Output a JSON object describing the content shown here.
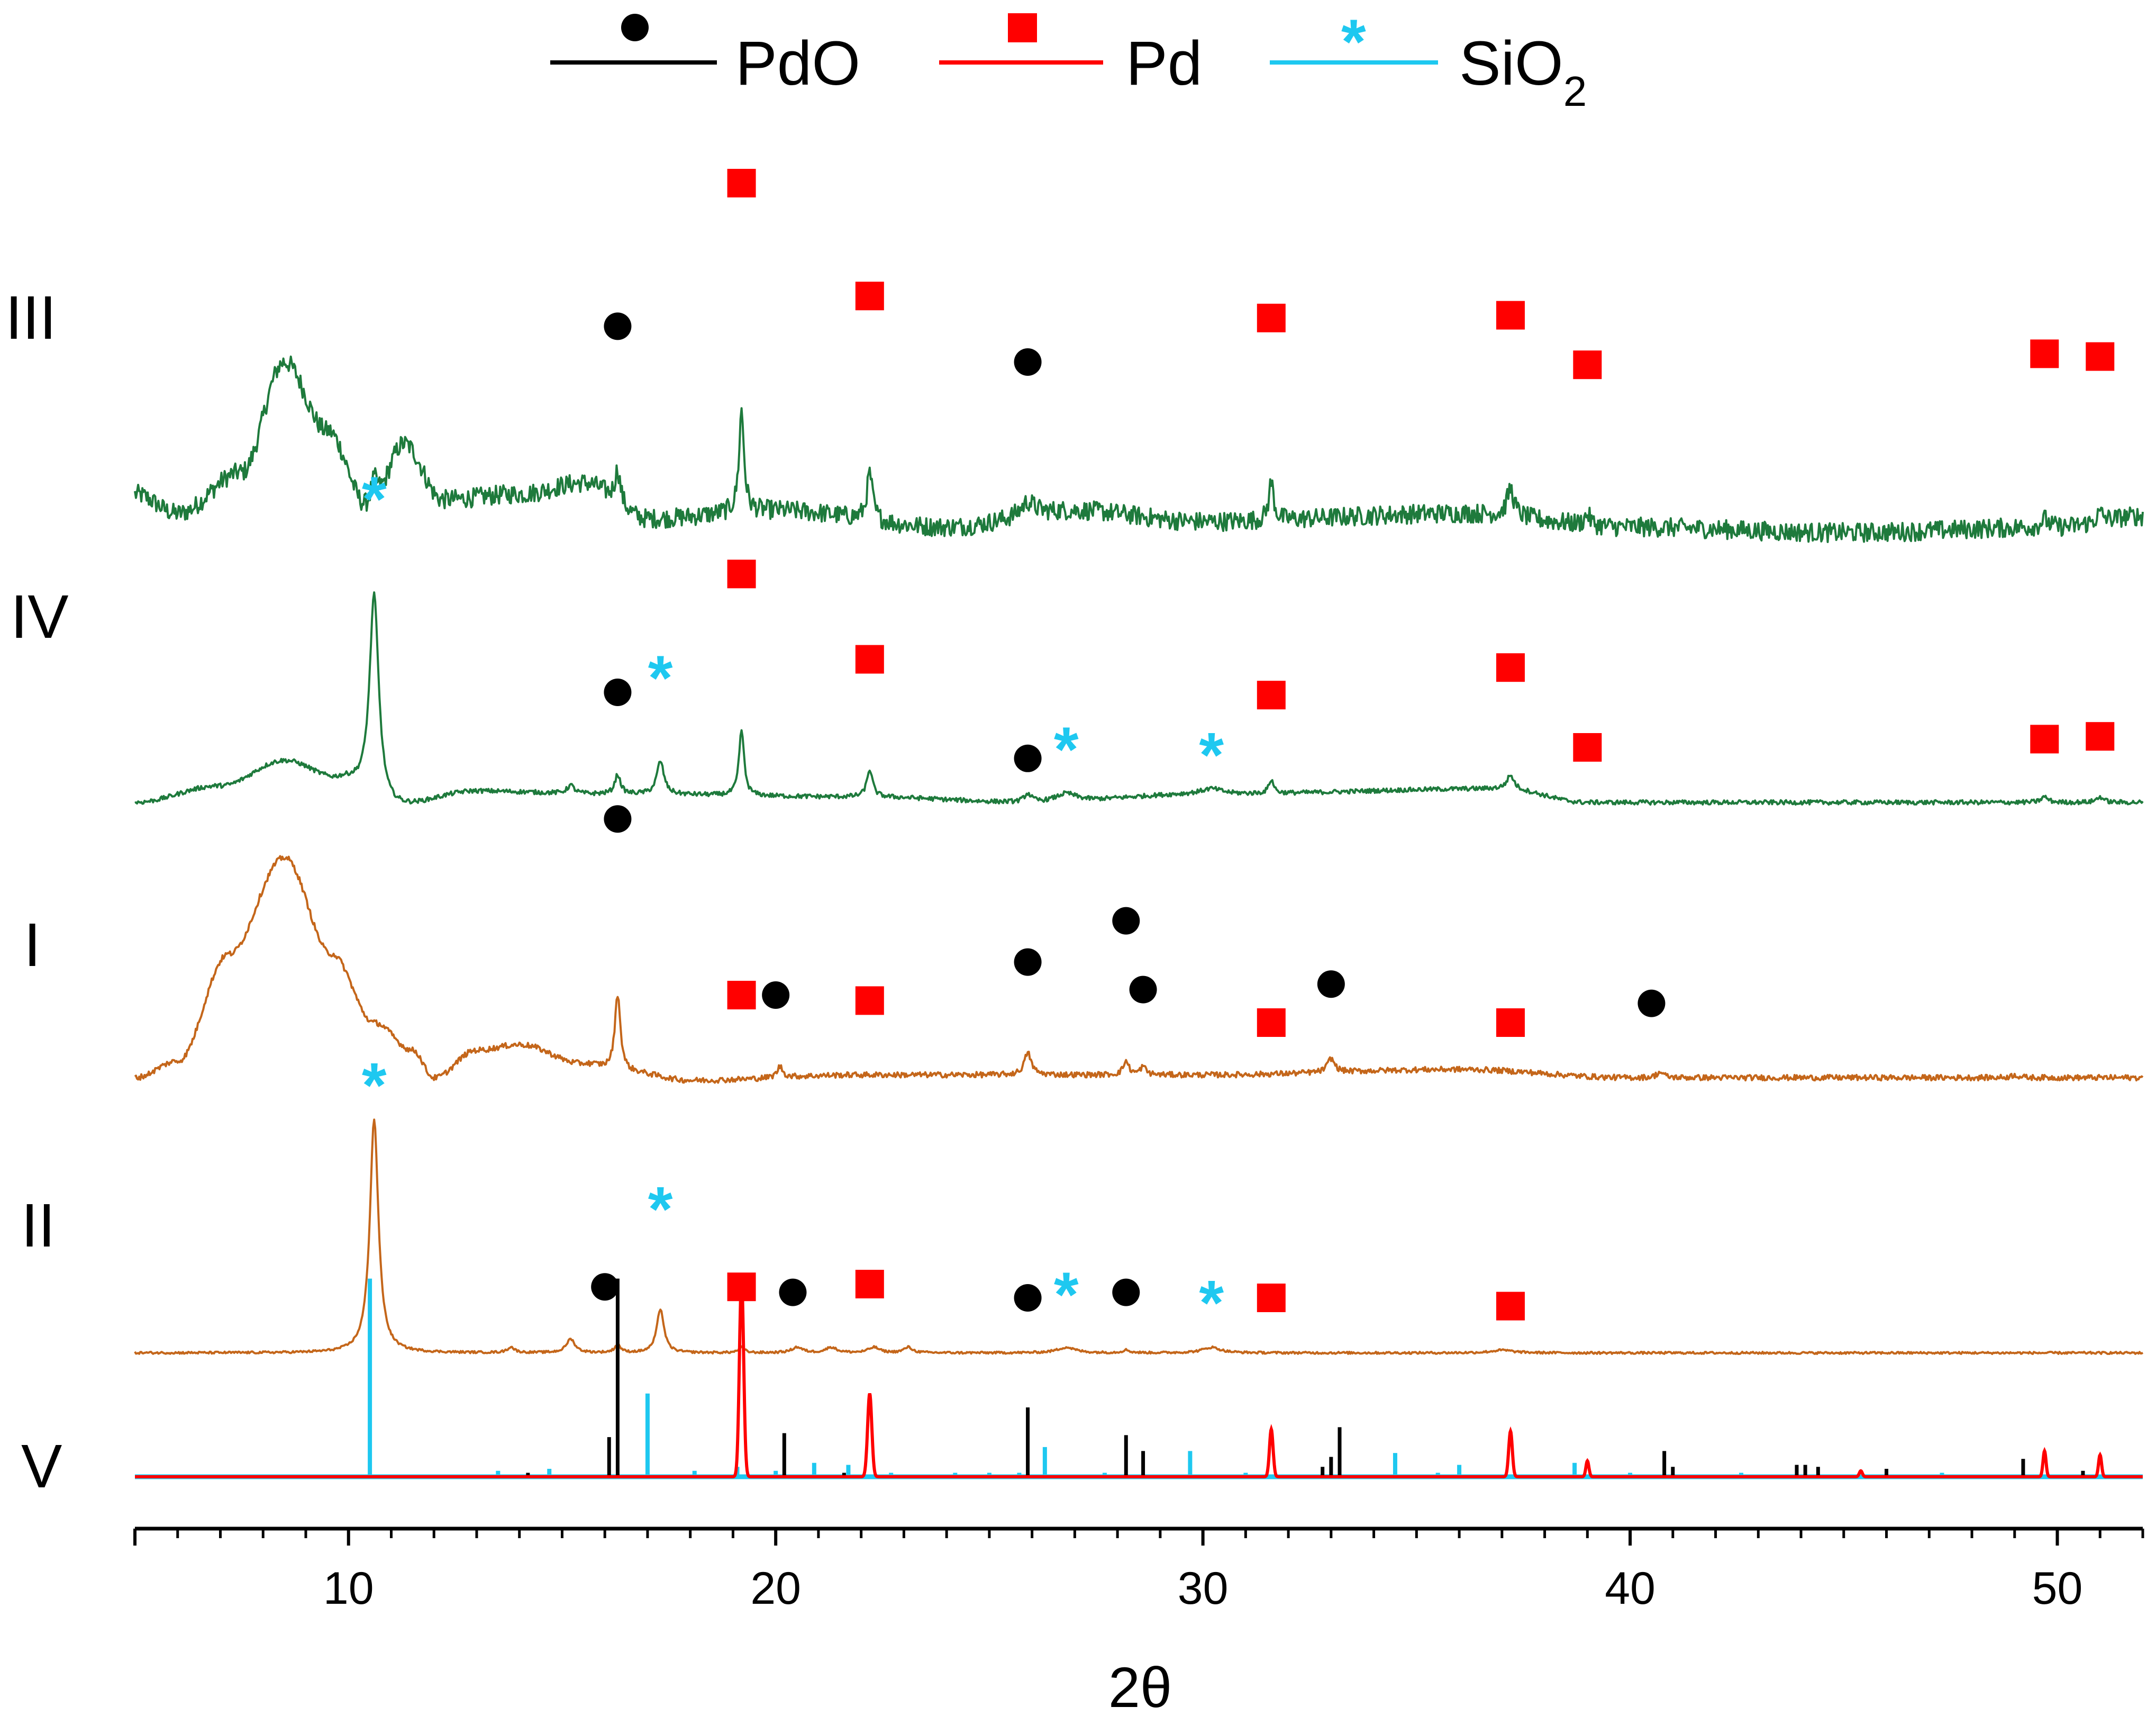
{
  "chart_data": {
    "type": "line",
    "title": "",
    "xlabel": "2θ",
    "ylabel": "",
    "xlim": [
      5,
      52
    ],
    "x_ticks": [
      10,
      20,
      30,
      40,
      50
    ],
    "x_tick_labels": [
      "10",
      "20",
      "30",
      "40",
      "50"
    ],
    "legend": [
      {
        "name": "PdO",
        "marker": "circle",
        "line_color": "#000000",
        "marker_color": "#000000"
      },
      {
        "name": "Pd",
        "marker": "square",
        "line_color": "#ff0000",
        "marker_color": "#ff0000"
      },
      {
        "name": "SiO",
        "subscript": "2",
        "marker": "star",
        "line_color": "#1ec8f0",
        "marker_color": "#1ec8f0"
      }
    ],
    "legend_position": "top-center",
    "series": [
      {
        "name": "III",
        "color": "#1e7a3c",
        "offset": 3.45,
        "amp": 0.55,
        "baseline": [
          [
            5,
            0.12
          ],
          [
            6,
            0.05
          ],
          [
            7.5,
            0.2
          ],
          [
            8.5,
            0.6
          ],
          [
            9.5,
            0.35
          ],
          [
            10.5,
            0.05
          ],
          [
            11.3,
            0.3
          ],
          [
            12.2,
            0.1
          ],
          [
            14,
            0.12
          ],
          [
            15.5,
            0.16
          ],
          [
            17,
            0.03
          ],
          [
            20,
            0.06
          ],
          [
            24,
            0.0
          ],
          [
            27,
            0.06
          ],
          [
            30,
            0.02
          ],
          [
            36,
            0.05
          ],
          [
            40,
            0.0
          ],
          [
            45,
            -0.02
          ],
          [
            50,
            0.0
          ],
          [
            52,
            0.04
          ]
        ],
        "peaks": [
          [
            10.6,
            0.12,
            0.12
          ],
          [
            16.3,
            0.12,
            0.08
          ],
          [
            19.2,
            0.37,
            0.07
          ],
          [
            22.2,
            0.17,
            0.08
          ],
          [
            25.9,
            0.05,
            0.2
          ],
          [
            31.6,
            0.14,
            0.07
          ],
          [
            37.2,
            0.1,
            0.1
          ],
          [
            39.0,
            0.04,
            0.08
          ],
          [
            49.7,
            0.03,
            0.1
          ],
          [
            51.0,
            0.03,
            0.1
          ]
        ],
        "noise": 0.035
      },
      {
        "name": "IV",
        "color": "#1e7a3c",
        "offset": 2.45,
        "amp": 0.55,
        "baseline": [
          [
            5,
            0.0
          ],
          [
            7,
            0.06
          ],
          [
            8.5,
            0.15
          ],
          [
            9.8,
            0.08
          ],
          [
            11,
            -0.02
          ],
          [
            13,
            0.04
          ],
          [
            16,
            0.03
          ],
          [
            22,
            0.02
          ],
          [
            26,
            0.0
          ],
          [
            30,
            0.03
          ],
          [
            37,
            0.05
          ],
          [
            39,
            0.0
          ],
          [
            52,
            0.0
          ]
        ],
        "peaks": [
          [
            10.6,
            0.75,
            0.13
          ],
          [
            15.2,
            0.03,
            0.1
          ],
          [
            16.3,
            0.07,
            0.08
          ],
          [
            17.3,
            0.12,
            0.1
          ],
          [
            19.2,
            0.24,
            0.07
          ],
          [
            22.2,
            0.1,
            0.08
          ],
          [
            25.9,
            0.03,
            0.1
          ],
          [
            26.8,
            0.03,
            0.3
          ],
          [
            30.2,
            0.02,
            0.3
          ],
          [
            31.6,
            0.05,
            0.07
          ],
          [
            37.2,
            0.05,
            0.1
          ],
          [
            49.7,
            0.02,
            0.1
          ],
          [
            51.0,
            0.02,
            0.1
          ]
        ],
        "noise": 0.008
      },
      {
        "name": "I",
        "color": "#c4661a",
        "offset": 1.45,
        "amp": 0.55,
        "baseline": [
          [
            5,
            0.0
          ],
          [
            6,
            0.06
          ],
          [
            7.2,
            0.45
          ],
          [
            8.5,
            0.8
          ],
          [
            9.6,
            0.45
          ],
          [
            10.6,
            0.2
          ],
          [
            11.5,
            0.1
          ],
          [
            12,
            0.0
          ],
          [
            13,
            0.1
          ],
          [
            14,
            0.12
          ],
          [
            15.5,
            0.05
          ],
          [
            16.5,
            0.02
          ],
          [
            18,
            -0.01
          ],
          [
            22,
            0.01
          ],
          [
            30,
            0.01
          ],
          [
            36,
            0.03
          ],
          [
            40,
            0.0
          ],
          [
            52,
            0.0
          ]
        ],
        "peaks": [
          [
            16.3,
            0.28,
            0.08
          ],
          [
            20.1,
            0.04,
            0.08
          ],
          [
            25.9,
            0.08,
            0.1
          ],
          [
            28.2,
            0.05,
            0.08
          ],
          [
            28.6,
            0.03,
            0.08
          ],
          [
            33.0,
            0.05,
            0.1
          ],
          [
            40.7,
            0.02,
            0.1
          ],
          [
            49.0,
            0.01,
            0.1
          ]
        ],
        "noise": 0.01
      },
      {
        "name": "II",
        "color": "#c4661a",
        "offset": 0.45,
        "amp": 0.55,
        "baseline": [
          [
            5,
            0.0
          ],
          [
            52,
            0.0
          ]
        ],
        "peaks": [
          [
            10.6,
            0.85,
            0.12
          ],
          [
            13.8,
            0.02,
            0.1
          ],
          [
            15.2,
            0.05,
            0.12
          ],
          [
            16.3,
            0.03,
            0.08
          ],
          [
            17.3,
            0.16,
            0.1
          ],
          [
            19.2,
            0.02,
            0.08
          ],
          [
            20.5,
            0.02,
            0.15
          ],
          [
            21.3,
            0.02,
            0.15
          ],
          [
            22.3,
            0.02,
            0.15
          ],
          [
            23.1,
            0.02,
            0.12
          ],
          [
            26.8,
            0.02,
            0.25
          ],
          [
            28.2,
            0.01,
            0.1
          ],
          [
            30.2,
            0.02,
            0.25
          ],
          [
            37.0,
            0.01,
            0.3
          ]
        ],
        "noise": 0.004
      }
    ],
    "reference_patterns": {
      "name": "V",
      "PdO": {
        "color": "#000000",
        "sticks": [
          [
            14.2,
            0.02
          ],
          [
            16.1,
            0.2
          ],
          [
            16.3,
            1.0
          ],
          [
            20.2,
            0.22
          ],
          [
            21.6,
            0.02
          ],
          [
            25.9,
            0.35
          ],
          [
            28.2,
            0.21
          ],
          [
            28.6,
            0.13
          ],
          [
            32.8,
            0.05
          ],
          [
            33.0,
            0.1
          ],
          [
            33.2,
            0.25
          ],
          [
            40.8,
            0.13
          ],
          [
            41.0,
            0.05
          ],
          [
            43.9,
            0.06
          ],
          [
            44.1,
            0.06
          ],
          [
            44.4,
            0.05
          ],
          [
            46.0,
            0.04
          ],
          [
            49.2,
            0.09
          ],
          [
            50.6,
            0.03
          ]
        ]
      },
      "SiO2": {
        "color": "#1ec8f0",
        "sticks": [
          [
            8.6,
            0.01
          ],
          [
            10.5,
            1.0
          ],
          [
            13.5,
            0.03
          ],
          [
            14.7,
            0.04
          ],
          [
            17.0,
            0.42
          ],
          [
            18.1,
            0.03
          ],
          [
            19.1,
            0.05
          ],
          [
            20.0,
            0.03
          ],
          [
            20.9,
            0.07
          ],
          [
            21.7,
            0.06
          ],
          [
            22.7,
            0.02
          ],
          [
            24.2,
            0.02
          ],
          [
            25.0,
            0.02
          ],
          [
            25.7,
            0.02
          ],
          [
            26.3,
            0.15
          ],
          [
            27.7,
            0.02
          ],
          [
            29.7,
            0.13
          ],
          [
            31.0,
            0.02
          ],
          [
            34.5,
            0.12
          ],
          [
            35.5,
            0.02
          ],
          [
            36.0,
            0.06
          ],
          [
            38.7,
            0.07
          ],
          [
            40.0,
            0.02
          ],
          [
            42.6,
            0.02
          ],
          [
            47.3,
            0.02
          ]
        ]
      },
      "Pd": {
        "color": "#ff0000",
        "peaks": [
          [
            19.2,
            1.0,
            0.07
          ],
          [
            22.2,
            0.42,
            0.07
          ],
          [
            31.6,
            0.24,
            0.06
          ],
          [
            37.2,
            0.23,
            0.06
          ],
          [
            39.0,
            0.08,
            0.05
          ],
          [
            45.4,
            0.03,
            0.05
          ],
          [
            49.7,
            0.13,
            0.05
          ],
          [
            51.0,
            0.11,
            0.05
          ]
        ]
      }
    },
    "annotations": [
      {
        "series": "III",
        "markers": [
          {
            "type": "circle",
            "x": 16.3,
            "h": 0.73
          },
          {
            "type": "square",
            "x": 19.2,
            "h": 1.25
          },
          {
            "type": "square",
            "x": 22.2,
            "h": 0.84
          },
          {
            "type": "circle",
            "x": 25.9,
            "h": 0.6
          },
          {
            "type": "square",
            "x": 31.6,
            "h": 0.76
          },
          {
            "type": "square",
            "x": 37.2,
            "h": 0.77
          },
          {
            "type": "square",
            "x": 39.0,
            "h": 0.59
          },
          {
            "type": "square",
            "x": 49.7,
            "h": 0.63
          },
          {
            "type": "square",
            "x": 51.0,
            "h": 0.62
          },
          {
            "type": "star",
            "x": 10.6,
            "h": 0.1
          }
        ]
      },
      {
        "series": "IV",
        "markers": [
          {
            "type": "circle",
            "x": 16.3,
            "h": 0.4
          },
          {
            "type": "star",
            "x": 17.3,
            "h": 0.45
          },
          {
            "type": "square",
            "x": 19.2,
            "h": 0.83
          },
          {
            "type": "square",
            "x": 22.2,
            "h": 0.52
          },
          {
            "type": "circle",
            "x": 25.9,
            "h": 0.16
          },
          {
            "type": "star",
            "x": 26.8,
            "h": 0.19
          },
          {
            "type": "star",
            "x": 30.2,
            "h": 0.17
          },
          {
            "type": "square",
            "x": 31.6,
            "h": 0.39
          },
          {
            "type": "square",
            "x": 37.2,
            "h": 0.49
          },
          {
            "type": "square",
            "x": 39.0,
            "h": 0.2
          },
          {
            "type": "square",
            "x": 49.7,
            "h": 0.23
          },
          {
            "type": "square",
            "x": 51.0,
            "h": 0.24
          }
        ]
      },
      {
        "series": "I",
        "markers": [
          {
            "type": "circle",
            "x": 16.3,
            "h": 0.94
          },
          {
            "type": "square",
            "x": 19.2,
            "h": 0.3
          },
          {
            "type": "circle",
            "x": 20.0,
            "h": 0.3
          },
          {
            "type": "square",
            "x": 22.2,
            "h": 0.28
          },
          {
            "type": "circle",
            "x": 25.9,
            "h": 0.42
          },
          {
            "type": "circle",
            "x": 28.2,
            "h": 0.57
          },
          {
            "type": "circle",
            "x": 28.6,
            "h": 0.32
          },
          {
            "type": "circle",
            "x": 33.0,
            "h": 0.34
          },
          {
            "type": "square",
            "x": 31.6,
            "h": 0.2
          },
          {
            "type": "square",
            "x": 37.2,
            "h": 0.2
          },
          {
            "type": "circle",
            "x": 40.5,
            "h": 0.27
          },
          {
            "type": "star",
            "x": 10.6,
            "h": -0.03
          }
        ]
      },
      {
        "series": "II",
        "markers": [
          {
            "type": "circle",
            "x": 16.0,
            "h": 0.24
          },
          {
            "type": "star",
            "x": 17.3,
            "h": 0.52
          },
          {
            "type": "square",
            "x": 19.2,
            "h": 0.24
          },
          {
            "type": "circle",
            "x": 20.4,
            "h": 0.22
          },
          {
            "type": "square",
            "x": 22.2,
            "h": 0.25
          },
          {
            "type": "circle",
            "x": 25.9,
            "h": 0.2
          },
          {
            "type": "star",
            "x": 26.8,
            "h": 0.21
          },
          {
            "type": "circle",
            "x": 28.2,
            "h": 0.22
          },
          {
            "type": "star",
            "x": 30.2,
            "h": 0.18
          },
          {
            "type": "square",
            "x": 31.6,
            "h": 0.2
          },
          {
            "type": "square",
            "x": 37.2,
            "h": 0.17
          }
        ]
      }
    ],
    "series_labels": [
      "III",
      "IV",
      "I",
      "II",
      "V"
    ],
    "star_symbol": "*",
    "grid": false
  }
}
